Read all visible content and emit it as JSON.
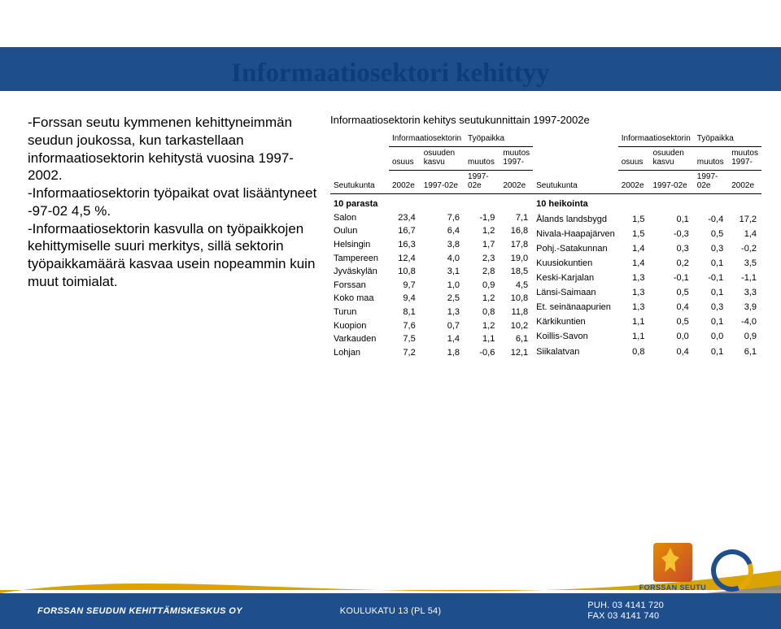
{
  "title": "Informaatiosektori kehittyy",
  "paragraphs": {
    "p1": "-Forssan seutu kymmenen kehittyneimmän seudun joukossa, kun tarkastellaan informaatiosektorin kehitystä vuosina 1997- 2002.",
    "p2": "-Informaatiosektorin työpaikat ovat lisääntyneet -97-02 4,5 %.",
    "p3": "-Informaatiosektorin kasvulla on työpaikkojen kehittymiselle suuri merkitys, sillä sektorin työpaikkamäärä kasvaa usein nopeammin kuin muut toimialat."
  },
  "tableTitle": "Informaatiosektorin kehitys seutukunnittain 1997-2002e",
  "headers": {
    "seutukunta": "Seutukunta",
    "h1a": "Informaatiosektorin",
    "h1b": "osuus",
    "h1c": "2002e",
    "h2a": "osuuden",
    "h2b": "kasvu",
    "h2c": "1997-02e",
    "h3a": "Työpaikka",
    "h3b": "muutos",
    "h3c": "1997-02e",
    "h4a": "muutos",
    "h4b": "1997-",
    "h4c": "2002e"
  },
  "left": {
    "subheader": "10 parasta",
    "rows": [
      {
        "name": "Salon",
        "v1": "23,4",
        "v2": "7,6",
        "v3": "-1,9",
        "v4": "7,1"
      },
      {
        "name": "Oulun",
        "v1": "16,7",
        "v2": "6,4",
        "v3": "1,2",
        "v4": "16,8"
      },
      {
        "name": "Helsingin",
        "v1": "16,3",
        "v2": "3,8",
        "v3": "1,7",
        "v4": "17,8"
      },
      {
        "name": "Tampereen",
        "v1": "12,4",
        "v2": "4,0",
        "v3": "2,3",
        "v4": "19,0"
      },
      {
        "name": "Jyväskylän",
        "v1": "10,8",
        "v2": "3,1",
        "v3": "2,8",
        "v4": "18,5"
      },
      {
        "name": "Forssan",
        "v1": "9,7",
        "v2": "1,0",
        "v3": "0,9",
        "v4": "4,5"
      },
      {
        "name": "Koko maa",
        "v1": "9,4",
        "v2": "2,5",
        "v3": "1,2",
        "v4": "10,8"
      },
      {
        "name": "Turun",
        "v1": "8,1",
        "v2": "1,3",
        "v3": "0,8",
        "v4": "11,8"
      },
      {
        "name": "Kuopion",
        "v1": "7,6",
        "v2": "0,7",
        "v3": "1,2",
        "v4": "10,2"
      },
      {
        "name": "Varkauden",
        "v1": "7,5",
        "v2": "1,4",
        "v3": "1,1",
        "v4": "6,1"
      },
      {
        "name": "Lohjan",
        "v1": "7,2",
        "v2": "1,8",
        "v3": "-0,6",
        "v4": "12,1"
      }
    ]
  },
  "right": {
    "subheader": "10 heikointa",
    "rows": [
      {
        "name": "Ålands landsbygd",
        "v1": "1,5",
        "v2": "0,1",
        "v3": "-0,4",
        "v4": "17,2"
      },
      {
        "name": "Nivala-Haapajärven",
        "v1": "1,5",
        "v2": "-0,3",
        "v3": "0,5",
        "v4": "1,4"
      },
      {
        "name": "Pohj.-Satakunnan",
        "v1": "1,4",
        "v2": "0,3",
        "v3": "0,3",
        "v4": "-0,2"
      },
      {
        "name": "Kuusiokuntien",
        "v1": "1,4",
        "v2": "0,2",
        "v3": "0,1",
        "v4": "3,5"
      },
      {
        "name": "Keski-Karjalan",
        "v1": "1,3",
        "v2": "-0,1",
        "v3": "-0,1",
        "v4": "-1,1"
      },
      {
        "name": "Länsi-Saimaan",
        "v1": "1,3",
        "v2": "0,5",
        "v3": "0,1",
        "v4": "3,3"
      },
      {
        "name": "Et. seinänaapurien",
        "v1": "1,3",
        "v2": "0,4",
        "v3": "0,3",
        "v4": "3,9"
      },
      {
        "name": "Kärkikuntien",
        "v1": "1,1",
        "v2": "0,5",
        "v3": "0,1",
        "v4": "-4,0"
      },
      {
        "name": "Koillis-Savon",
        "v1": "1,1",
        "v2": "0,0",
        "v3": "0,0",
        "v4": "0,9"
      },
      {
        "name": "Siikalatvan",
        "v1": "0,8",
        "v2": "0,4",
        "v3": "0,1",
        "v4": "6,1"
      }
    ]
  },
  "footer": {
    "org": "FORSSAN SEUDUN KEHITTÄMISKESKUS OY",
    "addr": "KOULUKATU 13 (PL 54)",
    "tel1": "PUH. 03 4141 720",
    "tel2": "FAX 03 4141 740",
    "logoText": "FORSSAN SEUTU"
  },
  "colors": {
    "brandBlue": "#1e4e8c",
    "swooshYellow": "#d9a400",
    "swooshDark": "#8b8b7a"
  }
}
